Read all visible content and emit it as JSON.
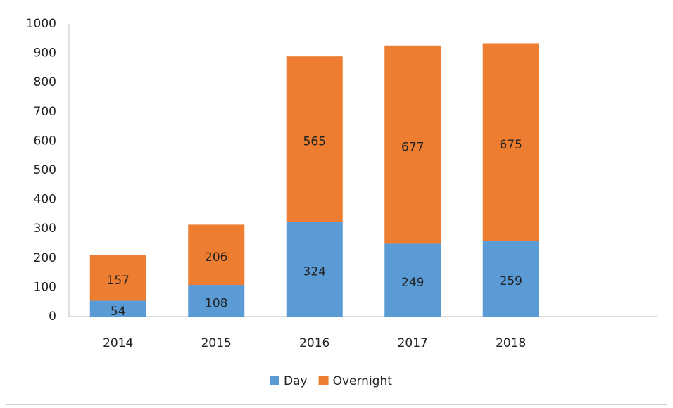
{
  "chart_data": {
    "type": "stacked_bar",
    "categories": [
      "2014",
      "2015",
      "2016",
      "2017",
      "2018",
      null
    ],
    "series": [
      {
        "name": "Day",
        "color": "#5b9bd5",
        "values": [
          54,
          108,
          324,
          249,
          259,
          null
        ]
      },
      {
        "name": "Overnight",
        "color": "#ed7d31",
        "values": [
          157,
          206,
          565,
          677,
          675,
          null
        ]
      }
    ],
    "ylim": [
      0,
      1000
    ],
    "yticks": [
      0,
      100,
      200,
      300,
      400,
      500,
      600,
      700,
      800,
      900,
      1000
    ],
    "grid": false,
    "legend": "bottom"
  }
}
